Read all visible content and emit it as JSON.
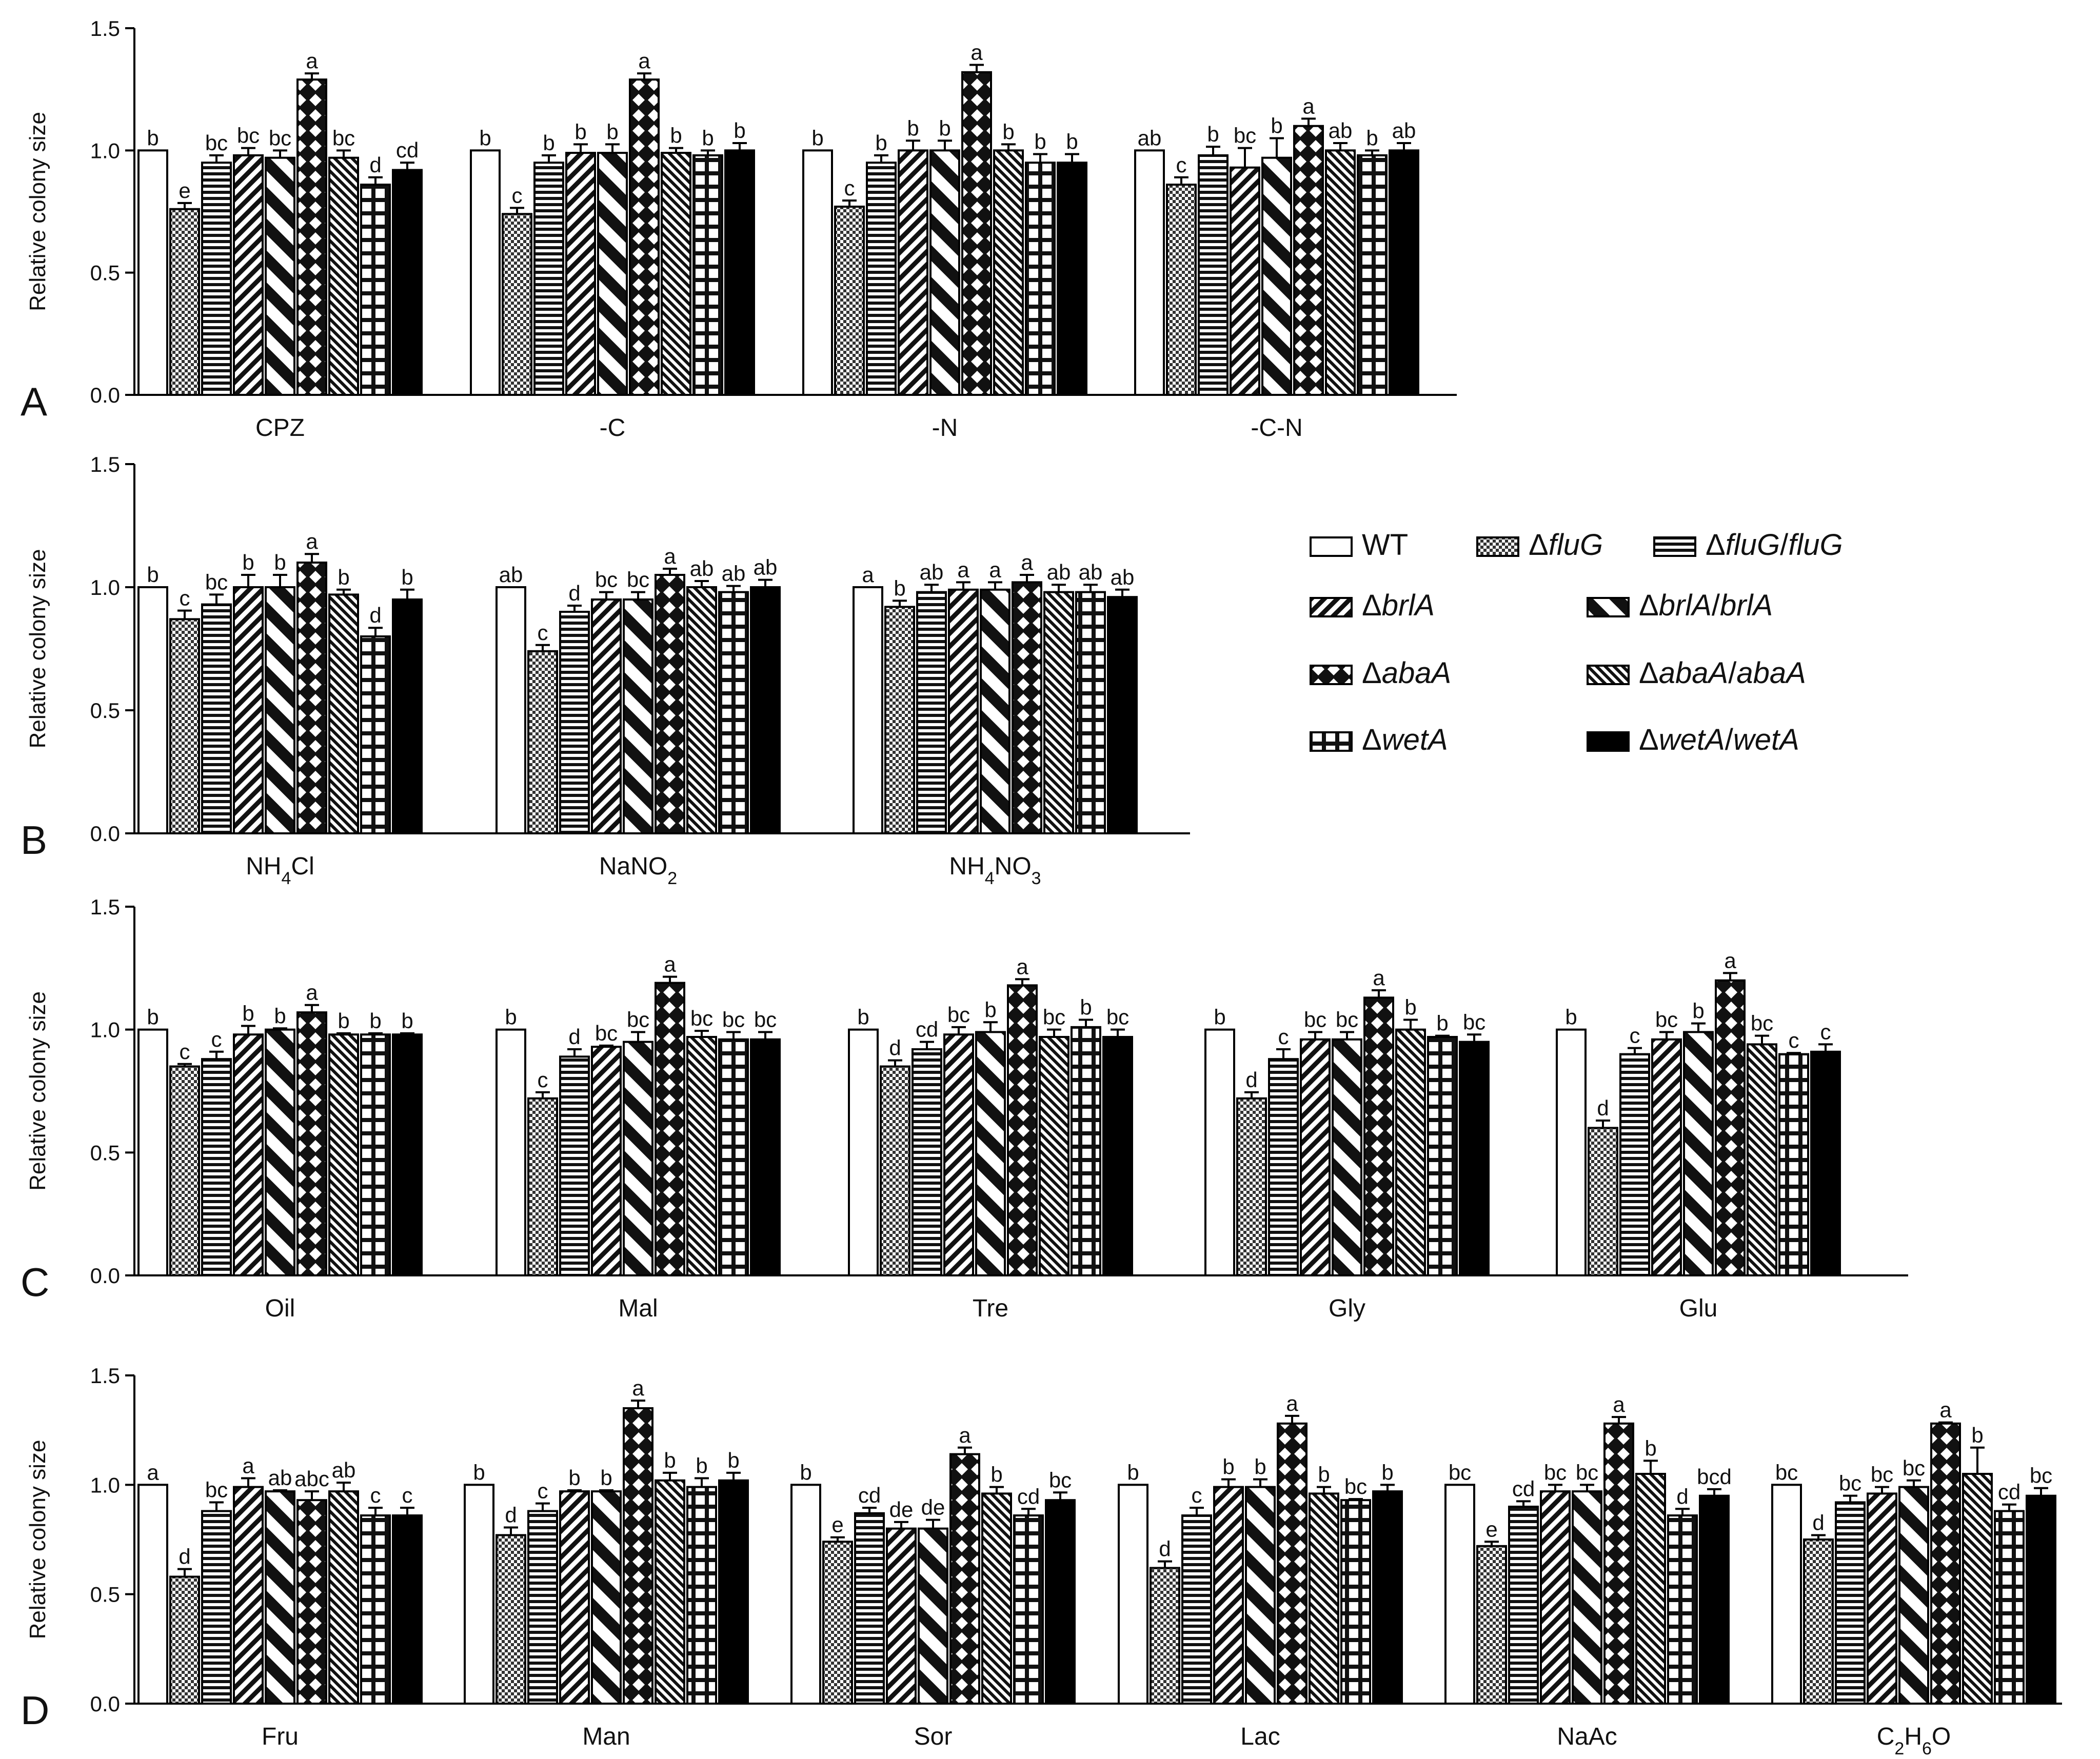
{
  "legend": {
    "items": [
      {
        "label": "WT",
        "pattern": "white"
      },
      {
        "label": "ΔfluG",
        "pattern": "check",
        "italic": true
      },
      {
        "label": "ΔfluG/fluG",
        "pattern": "hlines",
        "italic": true
      },
      {
        "label": "ΔbrlA",
        "pattern": "diag",
        "italic": true
      },
      {
        "label": "ΔbrlA/brlA",
        "pattern": "bigdiag",
        "italic": true
      },
      {
        "label": "ΔabaA",
        "pattern": "diamond",
        "italic": true
      },
      {
        "label": "ΔabaA/abaA",
        "pattern": "finediag",
        "italic": true
      },
      {
        "label": "ΔwetA",
        "pattern": "grid",
        "italic": true
      },
      {
        "label": "ΔwetA/wetA",
        "pattern": "black",
        "italic": true
      }
    ]
  },
  "chart_data": [
    {
      "type": "bar",
      "panel": "A",
      "ylabel": "Relative colony size",
      "ylim": [
        0,
        1.5
      ],
      "yticks": [
        "0.0",
        "0.5",
        "1.0",
        "1.5"
      ],
      "groups": [
        {
          "label": "CPZ",
          "values": [
            1.0,
            0.76,
            0.95,
            0.98,
            0.97,
            1.29,
            0.97,
            0.86,
            0.92
          ],
          "errors": [
            0,
            0.025,
            0.03,
            0.03,
            0.03,
            0.025,
            0.03,
            0.03,
            0.03
          ],
          "letters": [
            "b",
            "e",
            "bc",
            "bc",
            "bc",
            "a",
            "bc",
            "d",
            "cd"
          ]
        },
        {
          "label": "-C",
          "values": [
            1.0,
            0.74,
            0.95,
            0.99,
            0.99,
            1.29,
            0.99,
            0.98,
            1.0
          ],
          "errors": [
            0,
            0.025,
            0.03,
            0.035,
            0.035,
            0.025,
            0.02,
            0.02,
            0.03
          ],
          "letters": [
            "b",
            "c",
            "b",
            "b",
            "b",
            "a",
            "b",
            "b",
            "b"
          ]
        },
        {
          "label": "-N",
          "values": [
            1.0,
            0.77,
            0.95,
            1.0,
            1.0,
            1.32,
            1.0,
            0.95,
            0.95
          ],
          "errors": [
            0,
            0.025,
            0.03,
            0.04,
            0.04,
            0.03,
            0.025,
            0.035,
            0.035
          ],
          "letters": [
            "b",
            "c",
            "b",
            "b",
            "b",
            "a",
            "b",
            "b",
            "b"
          ]
        },
        {
          "label": "-C-N",
          "values": [
            1.0,
            0.86,
            0.98,
            0.93,
            0.97,
            1.1,
            1.0,
            0.98,
            1.0
          ],
          "errors": [
            0,
            0.03,
            0.035,
            0.08,
            0.08,
            0.03,
            0.03,
            0.02,
            0.03
          ],
          "letters": [
            "ab",
            "c",
            "b",
            "bc",
            "b",
            "a",
            "ab",
            "b",
            "ab"
          ]
        }
      ]
    },
    {
      "type": "bar",
      "panel": "B",
      "ylabel": "Relative colony size",
      "ylim": [
        0,
        1.5
      ],
      "yticks": [
        "0.0",
        "0.5",
        "1.0",
        "1.5"
      ],
      "groups": [
        {
          "label": "NH",
          "sub": "4",
          "rest": "Cl",
          "values": [
            1.0,
            0.87,
            0.93,
            1.0,
            1.0,
            1.1,
            0.97,
            0.8,
            0.95
          ],
          "errors": [
            0,
            0.035,
            0.04,
            0.05,
            0.05,
            0.035,
            0.02,
            0.035,
            0.04
          ],
          "letters": [
            "b",
            "c",
            "bc",
            "b",
            "b",
            "a",
            "b",
            "d",
            "b"
          ]
        },
        {
          "label": "NaNO",
          "sub": "2",
          "rest": "",
          "values": [
            1.0,
            0.74,
            0.9,
            0.95,
            0.95,
            1.05,
            1.0,
            0.98,
            1.0
          ],
          "errors": [
            0,
            0.025,
            0.025,
            0.03,
            0.03,
            0.025,
            0.025,
            0.025,
            0.03
          ],
          "letters": [
            "ab",
            "c",
            "d",
            "bc",
            "bc",
            "a",
            "ab",
            "ab",
            "ab"
          ]
        },
        {
          "label": "NH",
          "sub": "4",
          "rest": "NO3",
          "sub2": "3",
          "values": [
            1.0,
            0.92,
            0.98,
            0.99,
            0.99,
            1.02,
            0.98,
            0.98,
            0.96
          ],
          "errors": [
            0,
            0.025,
            0.03,
            0.03,
            0.03,
            0.03,
            0.03,
            0.03,
            0.03
          ],
          "letters": [
            "a",
            "b",
            "ab",
            "a",
            "a",
            "a",
            "ab",
            "ab",
            "ab"
          ]
        }
      ]
    },
    {
      "type": "bar",
      "panel": "C",
      "ylabel": "Relative colony size",
      "ylim": [
        0,
        1.5
      ],
      "yticks": [
        "0.0",
        "0.5",
        "1.0",
        "1.5"
      ],
      "groups": [
        {
          "label": "Oil",
          "values": [
            1.0,
            0.85,
            0.88,
            0.98,
            1.0,
            1.07,
            0.98,
            0.98,
            0.98
          ],
          "errors": [
            0,
            0.01,
            0.03,
            0.035,
            0.005,
            0.03,
            0.005,
            0.005,
            0.005
          ],
          "letters": [
            "b",
            "c",
            "c",
            "b",
            "b",
            "a",
            "b",
            "b",
            "b"
          ]
        },
        {
          "label": "Mal",
          "values": [
            1.0,
            0.72,
            0.89,
            0.93,
            0.95,
            1.19,
            0.97,
            0.96,
            0.96
          ],
          "errors": [
            0,
            0.025,
            0.03,
            0.005,
            0.04,
            0.025,
            0.025,
            0.03,
            0.03
          ],
          "letters": [
            "b",
            "c",
            "d",
            "bc",
            "bc",
            "a",
            "bc",
            "bc",
            "bc"
          ]
        },
        {
          "label": "Tre",
          "values": [
            1.0,
            0.85,
            0.92,
            0.98,
            0.99,
            1.18,
            0.97,
            1.01,
            0.97
          ],
          "errors": [
            0,
            0.025,
            0.03,
            0.03,
            0.04,
            0.025,
            0.03,
            0.03,
            0.03
          ],
          "letters": [
            "b",
            "d",
            "cd",
            "bc",
            "b",
            "a",
            "bc",
            "b",
            "bc"
          ]
        },
        {
          "label": "Gly",
          "values": [
            1.0,
            0.72,
            0.88,
            0.96,
            0.96,
            1.13,
            1.0,
            0.97,
            0.95
          ],
          "errors": [
            0,
            0.025,
            0.04,
            0.03,
            0.03,
            0.03,
            0.04,
            0.005,
            0.03
          ],
          "letters": [
            "b",
            "d",
            "c",
            "bc",
            "bc",
            "a",
            "b",
            "b",
            "bc"
          ]
        },
        {
          "label": "Glu",
          "values": [
            1.0,
            0.6,
            0.9,
            0.96,
            0.99,
            1.2,
            0.94,
            0.9,
            0.91
          ],
          "errors": [
            0,
            0.03,
            0.025,
            0.03,
            0.035,
            0.03,
            0.035,
            0.005,
            0.03
          ],
          "letters": [
            "b",
            "d",
            "c",
            "bc",
            "b",
            "a",
            "bc",
            "c",
            "c"
          ]
        }
      ]
    },
    {
      "type": "bar",
      "panel": "D",
      "ylabel": "Relative colony size",
      "ylim": [
        0,
        1.5
      ],
      "yticks": [
        "0.0",
        "0.5",
        "1.0",
        "1.5"
      ],
      "groups": [
        {
          "label": "Fru",
          "values": [
            1.0,
            0.58,
            0.88,
            0.99,
            0.97,
            0.93,
            0.97,
            0.86,
            0.86
          ],
          "errors": [
            0,
            0.035,
            0.04,
            0.04,
            0.005,
            0.04,
            0.04,
            0.035,
            0.035
          ],
          "letters": [
            "a",
            "d",
            "bc",
            "a",
            "ab",
            "abc",
            "ab",
            "c",
            "c"
          ]
        },
        {
          "label": "Man",
          "values": [
            1.0,
            0.77,
            0.88,
            0.97,
            0.97,
            1.35,
            1.02,
            0.99,
            1.02
          ],
          "errors": [
            0,
            0.035,
            0.035,
            0.005,
            0.005,
            0.035,
            0.035,
            0.04,
            0.035
          ],
          "letters": [
            "b",
            "d",
            "c",
            "b",
            "b",
            "a",
            "b",
            "b",
            "b"
          ]
        },
        {
          "label": "Sor",
          "values": [
            1.0,
            0.74,
            0.87,
            0.8,
            0.8,
            1.14,
            0.96,
            0.86,
            0.93
          ],
          "errors": [
            0,
            0.02,
            0.025,
            0.03,
            0.04,
            0.03,
            0.03,
            0.03,
            0.035
          ],
          "letters": [
            "b",
            "e",
            "cd",
            "de",
            "de",
            "a",
            "b",
            "cd",
            "bc"
          ]
        },
        {
          "label": "Lac",
          "values": [
            1.0,
            0.62,
            0.86,
            0.99,
            0.99,
            1.28,
            0.96,
            0.93,
            0.97
          ],
          "errors": [
            0,
            0.03,
            0.035,
            0.035,
            0.035,
            0.035,
            0.03,
            0.005,
            0.03
          ],
          "letters": [
            "b",
            "d",
            "c",
            "b",
            "b",
            "a",
            "b",
            "bc",
            "b"
          ]
        },
        {
          "label": "NaAc",
          "values": [
            1.0,
            0.72,
            0.9,
            0.97,
            0.97,
            1.28,
            1.05,
            0.86,
            0.95
          ],
          "errors": [
            0,
            0.02,
            0.025,
            0.03,
            0.03,
            0.03,
            0.06,
            0.03,
            0.03
          ],
          "letters": [
            "bc",
            "e",
            "cd",
            "bc",
            "bc",
            "a",
            "b",
            "d",
            "bcd"
          ]
        },
        {
          "label": "C",
          "sub": "2",
          "rest": "H",
          "sub2": "6",
          "rest2": "O",
          "values": [
            1.0,
            0.75,
            0.92,
            0.96,
            0.99,
            1.28,
            1.05,
            0.88,
            0.95
          ],
          "errors": [
            0,
            0.02,
            0.03,
            0.03,
            0.03,
            0.005,
            0.12,
            0.03,
            0.035
          ],
          "letters": [
            "bc",
            "d",
            "bc",
            "bc",
            "bc",
            "a",
            "b",
            "cd",
            "bc"
          ]
        }
      ]
    }
  ],
  "panel_letters": [
    "A",
    "B",
    "C",
    "D"
  ]
}
